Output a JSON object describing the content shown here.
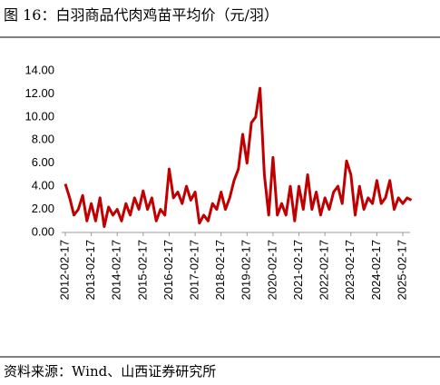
{
  "chart_data": {
    "type": "line",
    "title": "图 16：白羽商品代肉鸡苗平均价（元/羽）",
    "source": "资料来源：Wind、山西证券研究所",
    "categories": [
      "2012-02-17",
      null,
      null,
      null,
      null,
      null,
      "2013-02-17",
      null,
      null,
      null,
      null,
      null,
      "2014-02-17",
      null,
      null,
      null,
      null,
      null,
      "2015-02-17",
      null,
      null,
      null,
      null,
      null,
      "2016-02-17",
      null,
      null,
      null,
      null,
      null,
      "2017-02-17",
      null,
      null,
      null,
      null,
      null,
      "2018-02-17",
      null,
      null,
      null,
      null,
      null,
      "2019-02-17",
      null,
      null,
      null,
      null,
      null,
      "2020-02-17",
      null,
      null,
      null,
      null,
      null,
      "2021-02-17",
      null,
      null,
      null,
      null,
      null,
      "2022-02-17",
      null,
      null,
      null,
      null,
      null,
      "2023-02-17",
      null,
      null,
      null,
      null,
      null,
      "2024-02-17",
      null,
      null,
      null,
      null,
      null,
      "2025-02-17",
      null,
      null
    ],
    "series": [
      {
        "color": "#c00000",
        "values": [
          4.2,
          3.0,
          1.5,
          2.0,
          3.2,
          1.0,
          2.5,
          1.0,
          3.0,
          0.5,
          2.2,
          1.5,
          2.0,
          1.0,
          2.5,
          1.5,
          3.0,
          2.0,
          3.6,
          2.0,
          3.0,
          1.0,
          2.0,
          1.5,
          5.5,
          3.0,
          3.5,
          2.5,
          4.0,
          2.8,
          3.5,
          0.8,
          1.5,
          1.0,
          2.5,
          2.0,
          3.5,
          2.0,
          3.0,
          4.5,
          5.5,
          8.5,
          6.0,
          9.5,
          10.0,
          12.5,
          5.0,
          1.5,
          6.5,
          1.5,
          2.5,
          1.5,
          4.0,
          1.0,
          4.0,
          2.0,
          5.0,
          2.0,
          3.5,
          1.5,
          3.0,
          2.0,
          3.5,
          4.0,
          2.5,
          6.2,
          5.0,
          1.5,
          4.0,
          2.0,
          3.0,
          2.5,
          4.5,
          2.5,
          3.0,
          4.5,
          2.0,
          3.0,
          2.5,
          3.0,
          2.8
        ]
      }
    ],
    "ylim": [
      0,
      14
    ],
    "yticks": [
      {
        "value": 0,
        "label": "0.00"
      },
      {
        "value": 2,
        "label": "2.00"
      },
      {
        "value": 4,
        "label": "4.00"
      },
      {
        "value": 6,
        "label": "6.00"
      },
      {
        "value": 8,
        "label": "8.00"
      },
      {
        "value": 10,
        "label": "10.00"
      },
      {
        "value": 12,
        "label": "12.00"
      },
      {
        "value": 14,
        "label": "14.00"
      }
    ],
    "grid": false
  }
}
